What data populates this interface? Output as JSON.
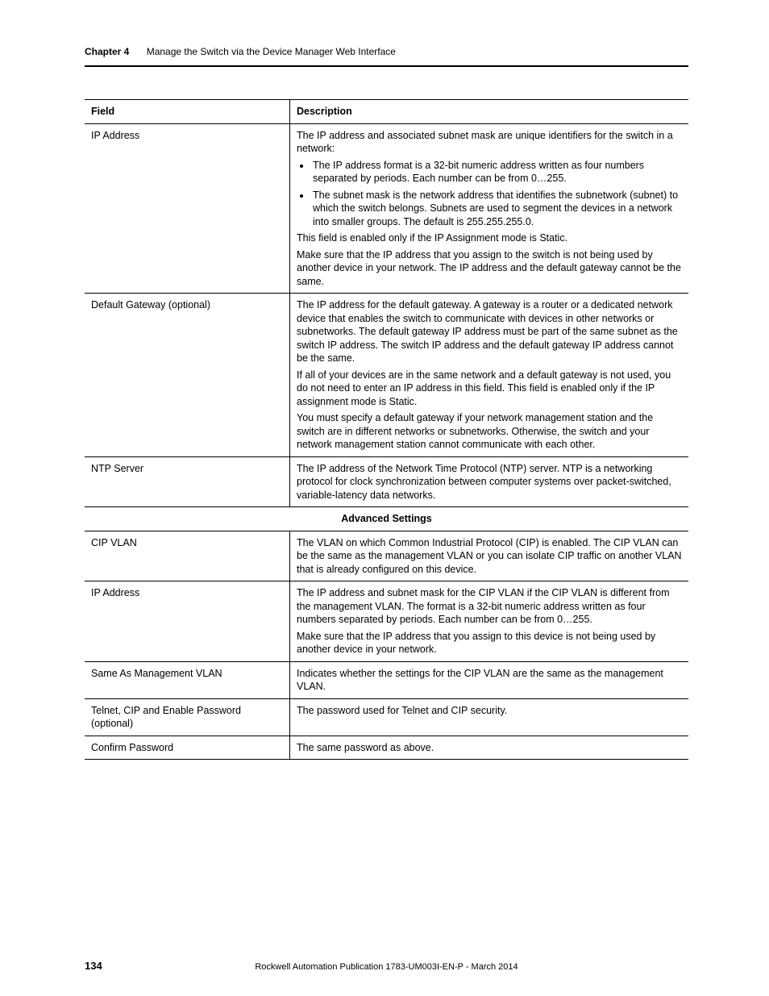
{
  "header": {
    "chapter_label": "Chapter 4",
    "chapter_title": "Manage the Switch via the Device Manager Web Interface"
  },
  "table": {
    "columns": [
      "Field",
      "Description"
    ],
    "rows": [
      {
        "field": "IP Address",
        "description": {
          "intro": "The IP address and associated subnet mask are unique identifiers for the switch in a network:",
          "bullets": [
            "The IP address format is a 32-bit numeric address written as four numbers separated by periods. Each number can be from 0…255.",
            "The subnet mask is the network address that identifies the subnetwork (subnet) to which the switch belongs. Subnets are used to segment the devices in a network into smaller groups. The default is 255.255.255.0."
          ],
          "after": [
            "This field is enabled only if the IP Assignment mode is Static.",
            "Make sure that the IP address that you assign to the switch is not being used by another device in your network. The IP address and the default gateway cannot be the same."
          ]
        }
      },
      {
        "field": "Default Gateway (optional)",
        "description": {
          "paras": [
            "The IP address for the default gateway. A gateway is a router or a dedicated network device that enables the switch to communicate with devices in other networks or subnetworks. The default gateway IP address must be part of the same subnet as the switch IP address. The switch IP address and the default gateway IP address cannot be the same.",
            "If all of your devices are in the same network and a default gateway is not used, you do not need to enter an IP address in this field. This field is enabled only if the IP assignment mode is Static.",
            "You must specify a default gateway if your network management station and the switch are in different networks or subnetworks. Otherwise, the switch and your network management station cannot communicate with each other."
          ]
        }
      },
      {
        "field": "NTP Server",
        "description": {
          "paras": [
            "The IP address of the Network Time Protocol (NTP) server. NTP is a networking protocol for clock synchronization between computer systems over packet-switched, variable-latency data networks."
          ]
        }
      }
    ],
    "section_header": "Advanced Settings",
    "rows2": [
      {
        "field": "CIP VLAN",
        "description": {
          "paras": [
            "The VLAN on which Common Industrial Protocol (CIP) is enabled. The CIP VLAN can be the same as the management VLAN or you can isolate CIP traffic on another VLAN that is already configured on this device."
          ]
        }
      },
      {
        "field": "IP Address",
        "description": {
          "paras": [
            "The IP address and subnet mask for the CIP VLAN if the CIP VLAN is different from the management VLAN. The format is a 32-bit numeric address written as four numbers separated by periods. Each number can be from 0…255.",
            "Make sure that the IP address that you assign to this device is not being used by another device in your network."
          ]
        }
      },
      {
        "field": "Same As Management VLAN",
        "description": {
          "paras": [
            "Indicates whether the settings for the CIP VLAN are the same as the management VLAN."
          ]
        }
      },
      {
        "field": "Telnet, CIP and Enable Password (optional)",
        "description": {
          "paras": [
            "The password used for Telnet and CIP security."
          ]
        }
      },
      {
        "field": "Confirm Password",
        "description": {
          "paras": [
            "The same password as above."
          ]
        }
      }
    ]
  },
  "footer": {
    "page_number": "134",
    "publication": "Rockwell Automation Publication 1783-UM003I-EN-P - March 2014"
  }
}
